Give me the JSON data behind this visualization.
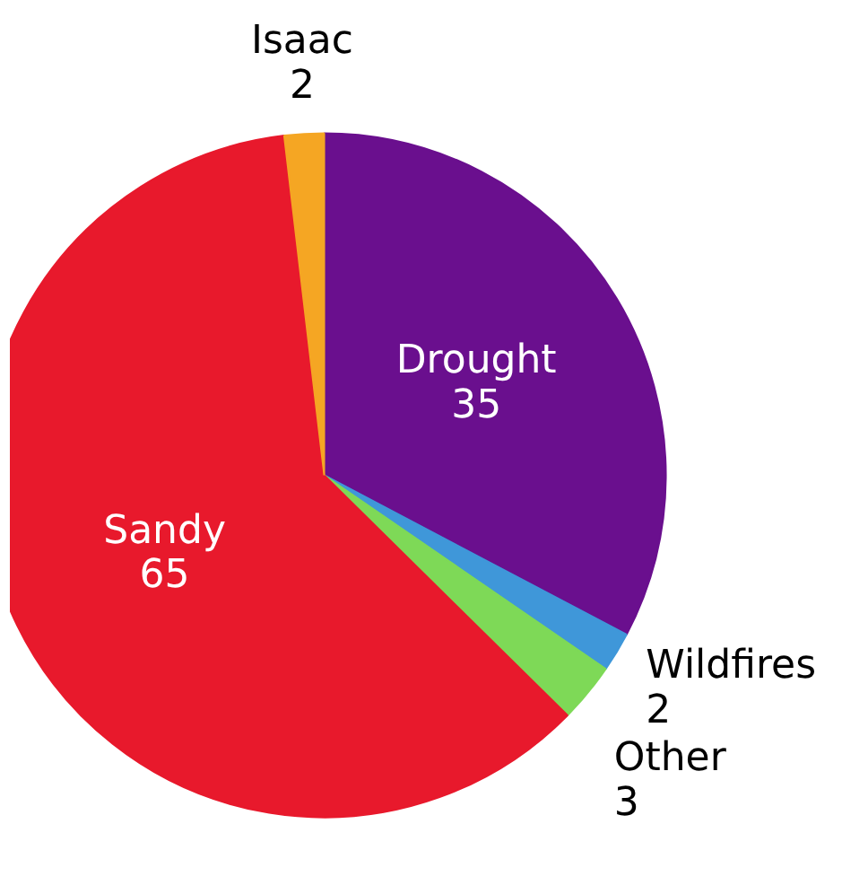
{
  "chart_data": {
    "type": "pie",
    "categories": [
      "Drought",
      "Wildfires",
      "Other",
      "Sandy",
      "Isaac"
    ],
    "values": [
      35,
      2,
      3,
      65,
      2
    ],
    "colors": [
      "#6a0f8e",
      "#3f97d9",
      "#7ed957",
      "#e8192c",
      "#f5a623"
    ],
    "data_labels": true
  }
}
